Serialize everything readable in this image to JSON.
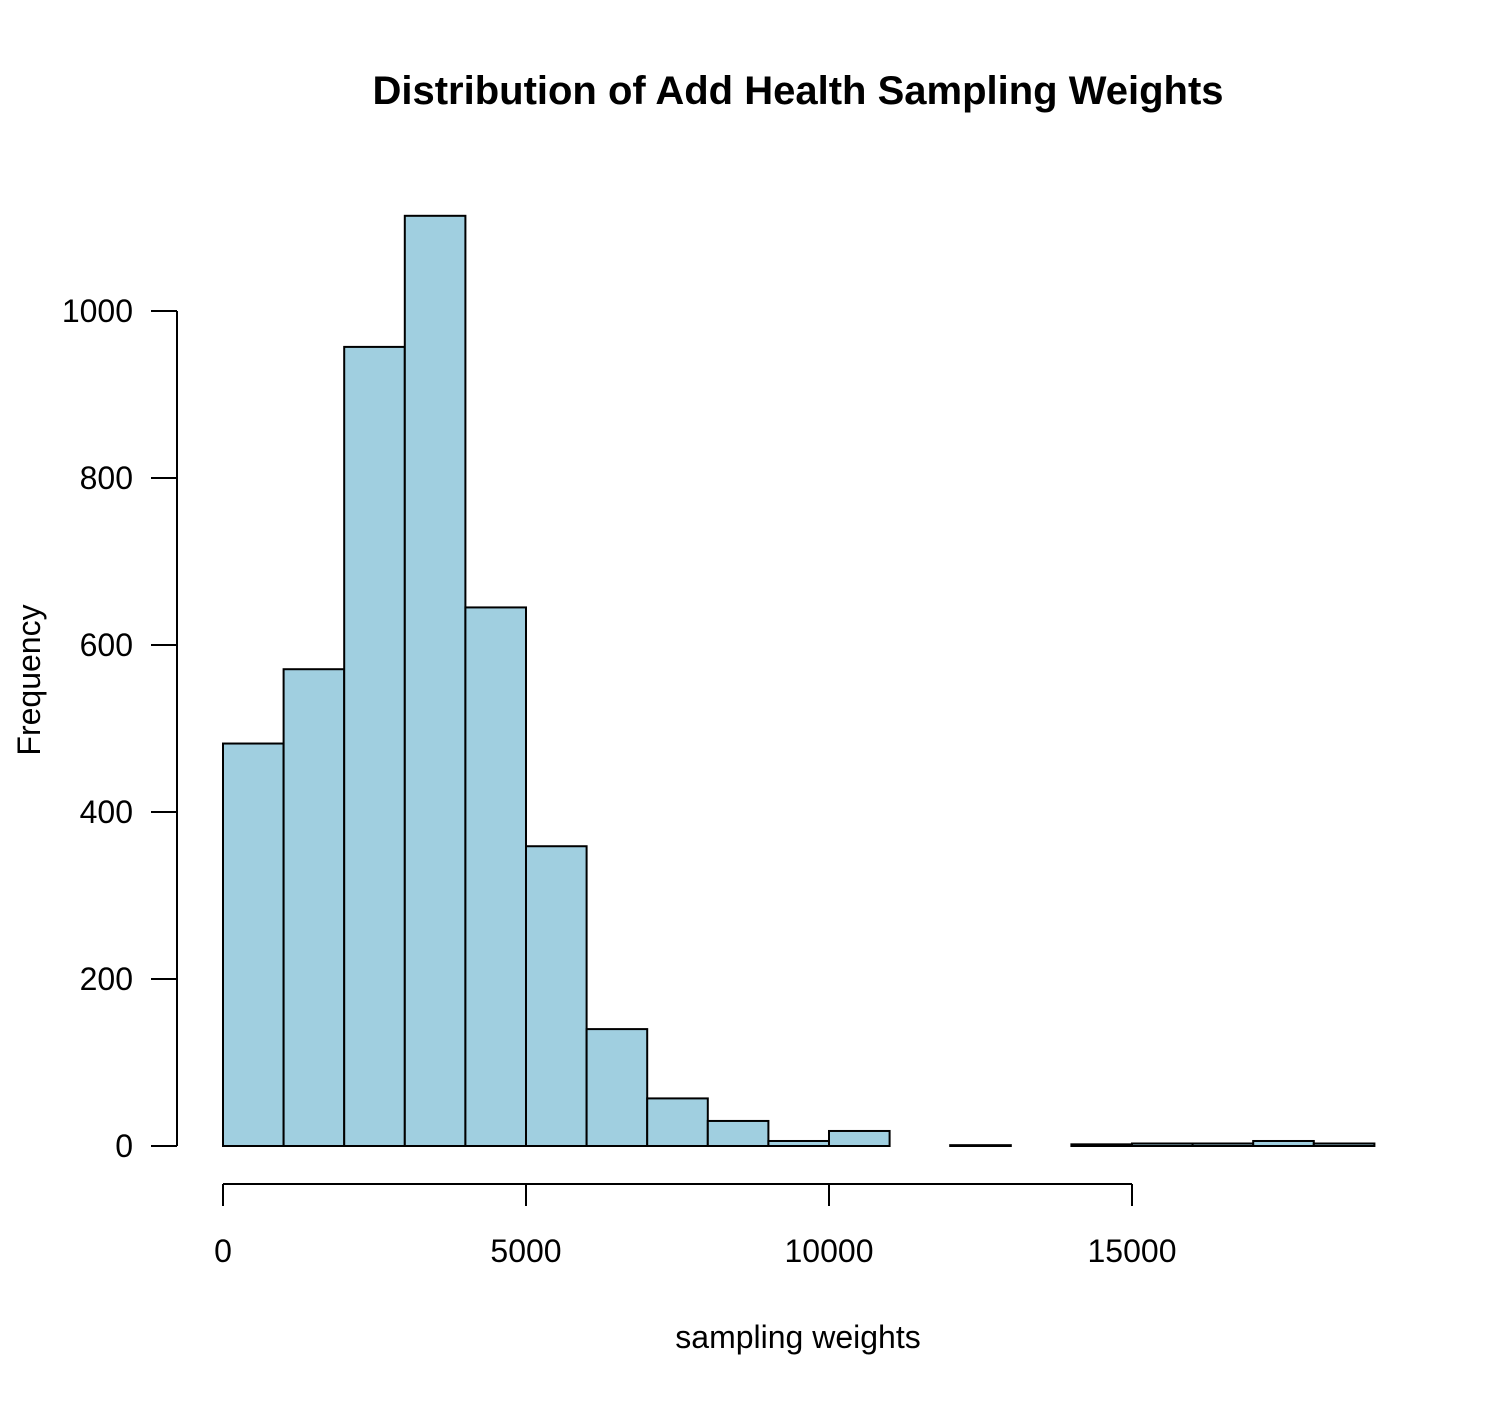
{
  "chart_data": {
    "type": "bar",
    "title": "Distribution of Add Health Sampling Weights",
    "xlabel": "sampling weights",
    "ylabel": "Frequency",
    "bar_color": "#a0cfe0",
    "bin_width": 1000,
    "xlim": [
      0,
      19000
    ],
    "ylim": [
      0,
      1120
    ],
    "x_ticks": [
      0,
      5000,
      10000,
      15000
    ],
    "x_tick_labels": [
      "0",
      "5000",
      "10000",
      "15000"
    ],
    "y_ticks": [
      0,
      200,
      400,
      600,
      800,
      1000
    ],
    "y_tick_labels": [
      "0",
      "200",
      "400",
      "600",
      "800",
      "1000"
    ],
    "bins": [
      {
        "start": 0,
        "end": 1000,
        "count": 482
      },
      {
        "start": 1000,
        "end": 2000,
        "count": 571
      },
      {
        "start": 2000,
        "end": 3000,
        "count": 957
      },
      {
        "start": 3000,
        "end": 4000,
        "count": 1114
      },
      {
        "start": 4000,
        "end": 5000,
        "count": 645
      },
      {
        "start": 5000,
        "end": 6000,
        "count": 359
      },
      {
        "start": 6000,
        "end": 7000,
        "count": 140
      },
      {
        "start": 7000,
        "end": 8000,
        "count": 57
      },
      {
        "start": 8000,
        "end": 9000,
        "count": 30
      },
      {
        "start": 9000,
        "end": 10000,
        "count": 6
      },
      {
        "start": 10000,
        "end": 11000,
        "count": 18
      },
      {
        "start": 11000,
        "end": 12000,
        "count": 0
      },
      {
        "start": 12000,
        "end": 13000,
        "count": 1
      },
      {
        "start": 13000,
        "end": 14000,
        "count": 0
      },
      {
        "start": 14000,
        "end": 15000,
        "count": 2
      },
      {
        "start": 15000,
        "end": 16000,
        "count": 3
      },
      {
        "start": 16000,
        "end": 17000,
        "count": 3
      },
      {
        "start": 17000,
        "end": 18000,
        "count": 6
      },
      {
        "start": 18000,
        "end": 19000,
        "count": 3
      }
    ]
  }
}
